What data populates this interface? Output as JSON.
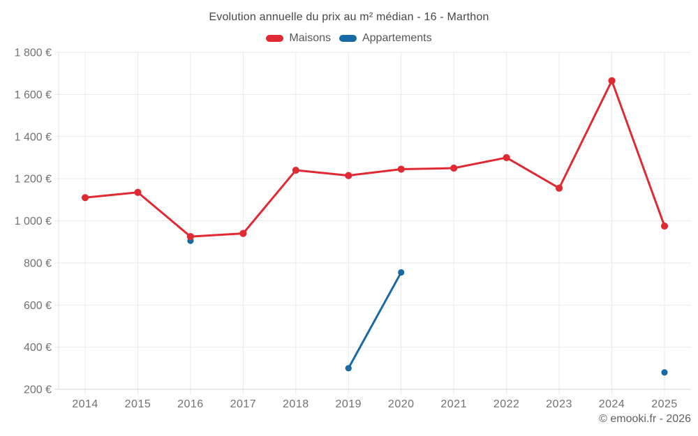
{
  "chart_data": {
    "type": "line",
    "title": "Evolution annuelle du prix au m² médian - 16 - Marthon",
    "attribution": "© emooki.fr - 2026",
    "categories": [
      "2014",
      "2015",
      "2016",
      "2017",
      "2018",
      "2019",
      "2020",
      "2021",
      "2022",
      "2023",
      "2024",
      "2025"
    ],
    "series": [
      {
        "name": "Maisons",
        "color": "#e02a33",
        "values": [
          1110,
          1135,
          925,
          940,
          1240,
          1215,
          1245,
          1250,
          1300,
          1155,
          1665,
          975
        ]
      },
      {
        "name": "Appartements",
        "color": "#176ba5",
        "values": [
          null,
          null,
          905,
          null,
          null,
          300,
          755,
          null,
          null,
          null,
          null,
          280
        ]
      }
    ],
    "ylim": [
      200,
      1800
    ],
    "ytick_step": 200,
    "ytick_labels": [
      "200 €",
      "400 €",
      "600 €",
      "800 €",
      "1 000 €",
      "1 200 €",
      "1 400 €",
      "1 600 €",
      "1 800 €"
    ],
    "xlabel": "",
    "ylabel": "",
    "grid": true,
    "legend_position": "top",
    "colors": {
      "grid_line": "#e9e9e9",
      "axis_line": "#d5d5d5",
      "left_border": "#e2e2e2",
      "tick_text": "#717171"
    }
  }
}
